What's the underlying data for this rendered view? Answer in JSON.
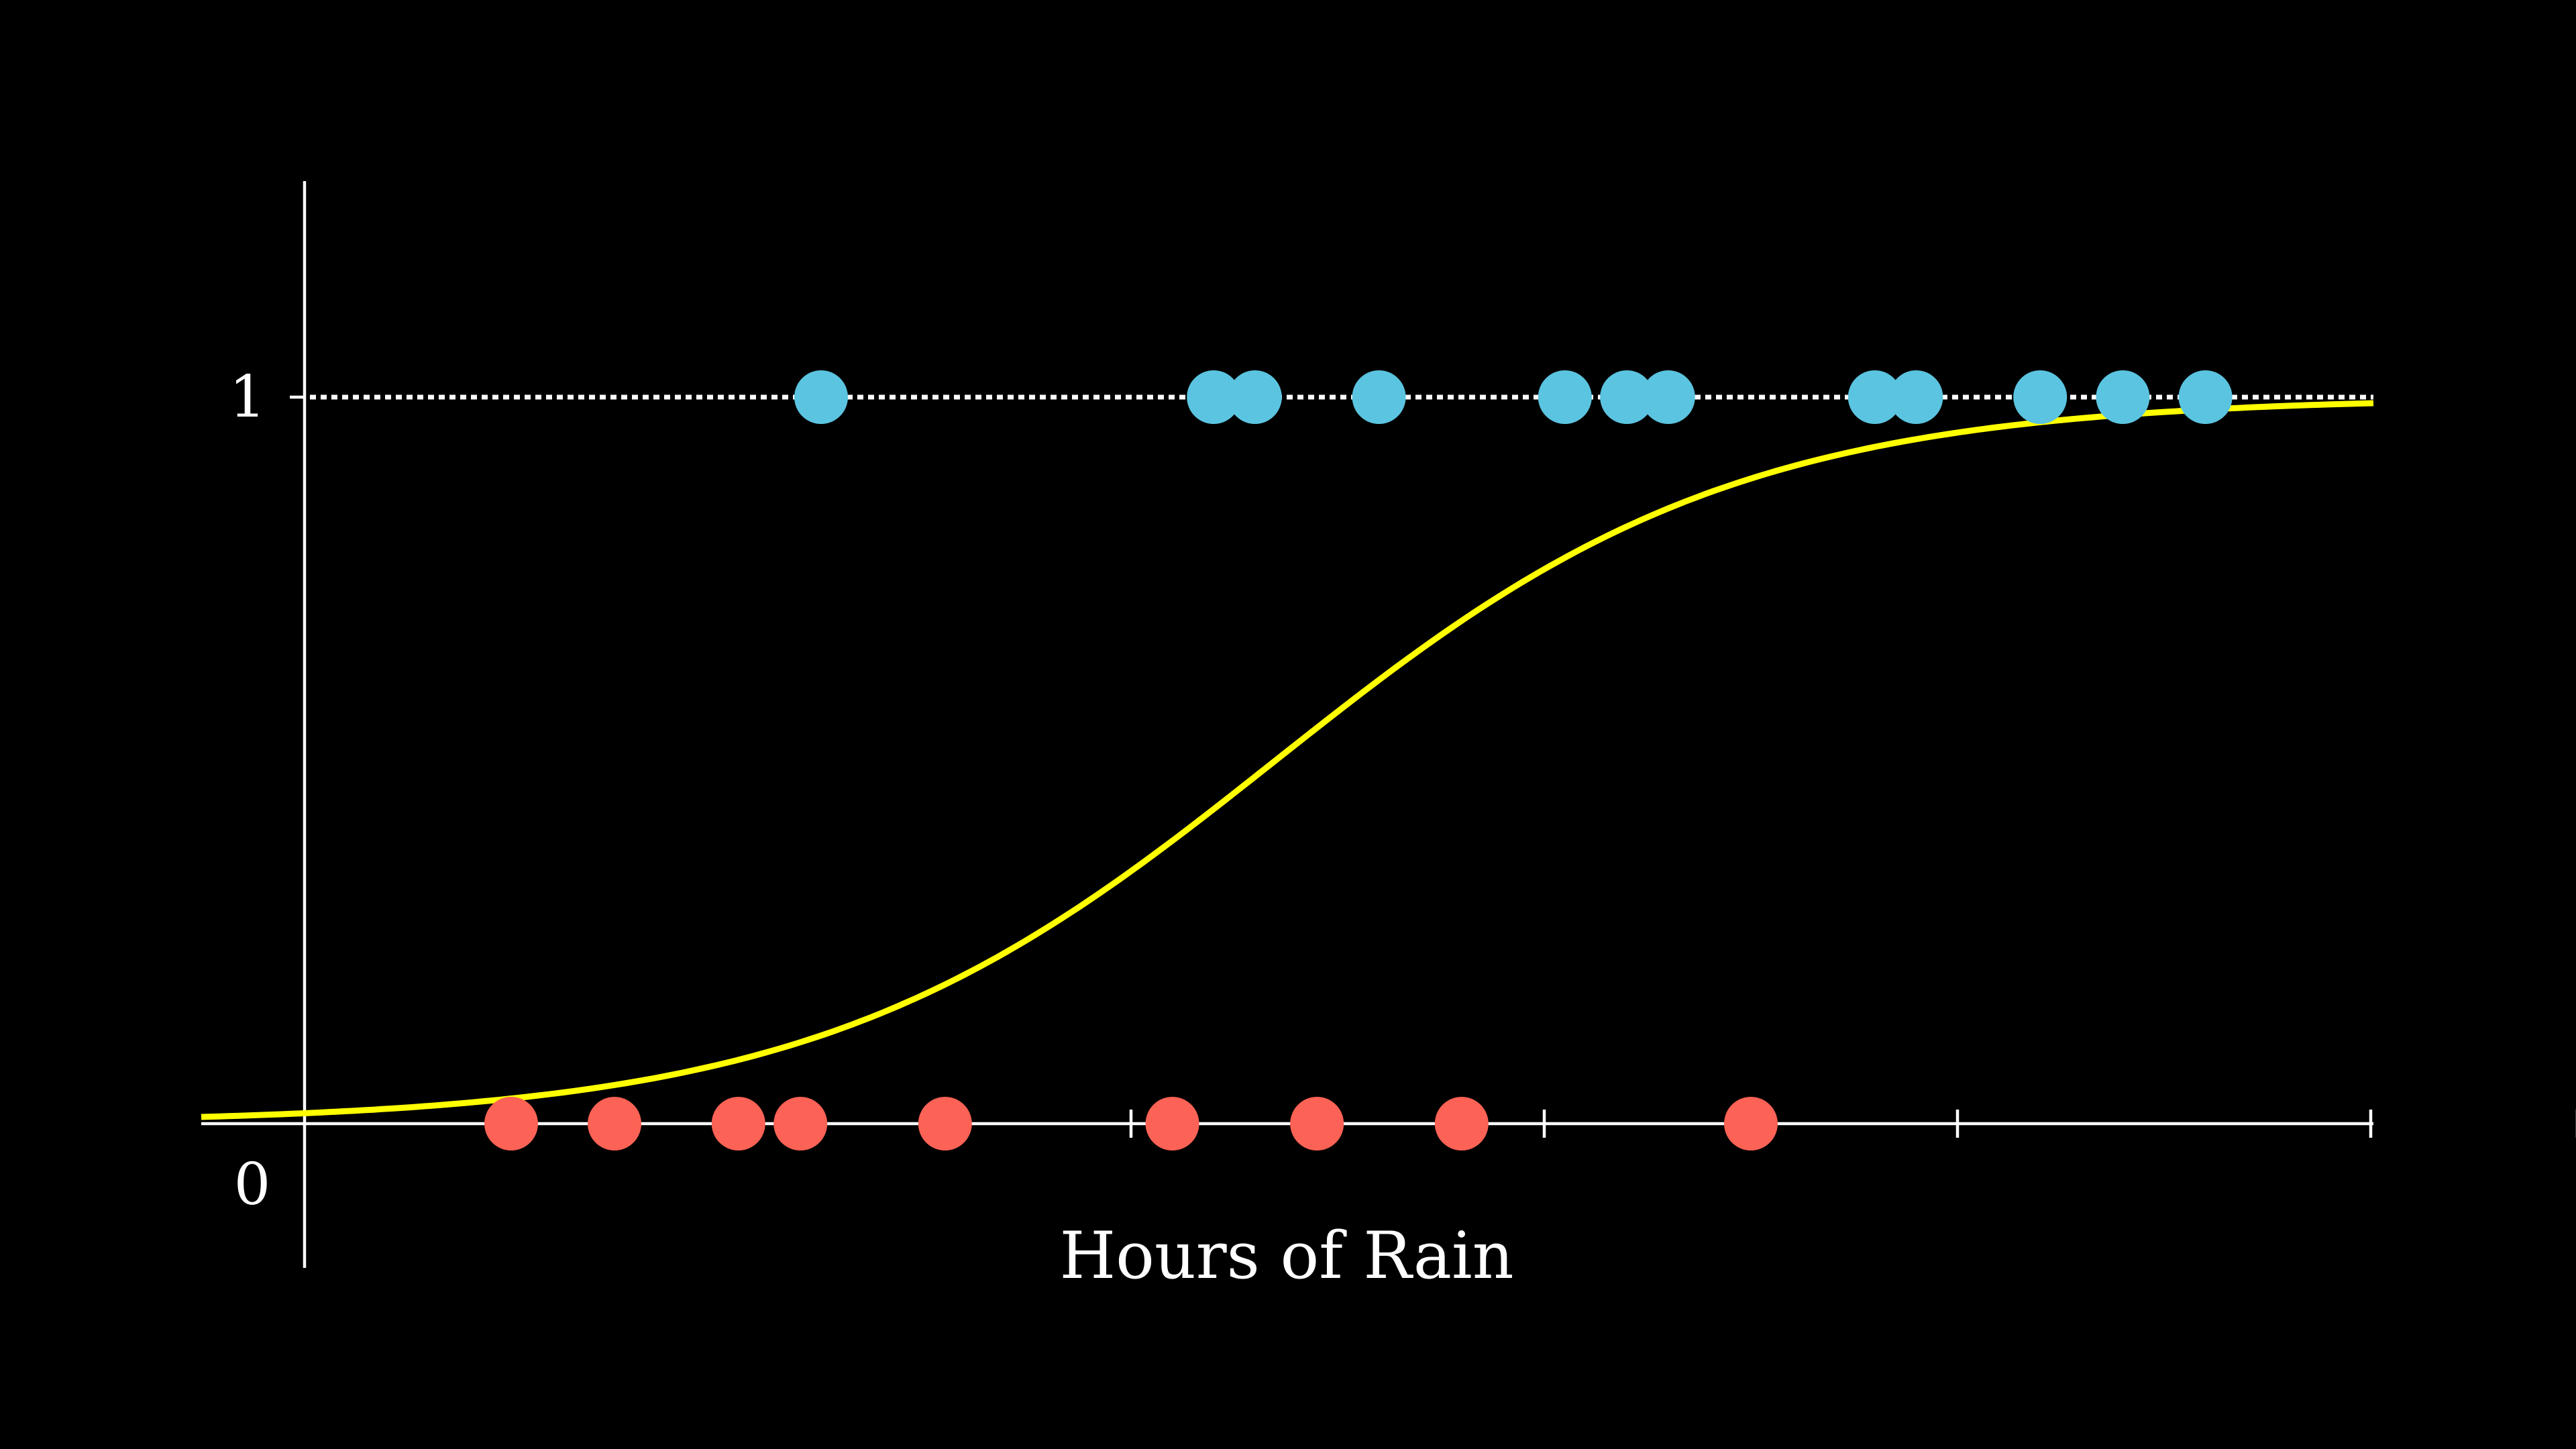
{
  "chart_data": {
    "type": "scatter",
    "title": "",
    "xlabel": "Hours of Rain",
    "ylabel": "",
    "ylim": [
      0,
      1
    ],
    "y_tick_labels": [
      "1",
      "0"
    ],
    "x_ticks": [
      4,
      6,
      8,
      10,
      11,
      12
    ],
    "grid": false,
    "colors": {
      "background": "#000000",
      "axes": "#ffffff",
      "reference": "#ffffff",
      "curve": "#ffff00",
      "positive": "#5bc4e0",
      "negative": "#fc6255"
    },
    "series": [
      {
        "values": [
          {
            "x": 2.5,
            "y": 1
          },
          {
            "x": 4.4,
            "y": 1
          },
          {
            "x": 4.6,
            "y": 1
          },
          {
            "x": 5.2,
            "y": 1
          },
          {
            "x": 6.1,
            "y": 1
          },
          {
            "x": 6.4,
            "y": 1
          },
          {
            "x": 6.6,
            "y": 1
          },
          {
            "x": 7.6,
            "y": 1
          },
          {
            "x": 7.8,
            "y": 1
          },
          {
            "x": 8.4,
            "y": 1
          },
          {
            "x": 8.8,
            "y": 1
          },
          {
            "x": 9.2,
            "y": 1
          }
        ]
      },
      {
        "values": [
          {
            "x": 1.0,
            "y": 0
          },
          {
            "x": 1.5,
            "y": 0
          },
          {
            "x": 2.1,
            "y": 0
          },
          {
            "x": 2.4,
            "y": 0
          },
          {
            "x": 3.1,
            "y": 0
          },
          {
            "x": 4.2,
            "y": 0
          },
          {
            "x": 4.9,
            "y": 0
          },
          {
            "x": 5.6,
            "y": 0
          },
          {
            "x": 7.0,
            "y": 0
          }
        ]
      }
    ],
    "reference_line": {
      "y": 1,
      "style": "dotted"
    },
    "curve": {
      "type": "logistic",
      "midpoint": 4.7,
      "steepness": 0.9
    }
  }
}
